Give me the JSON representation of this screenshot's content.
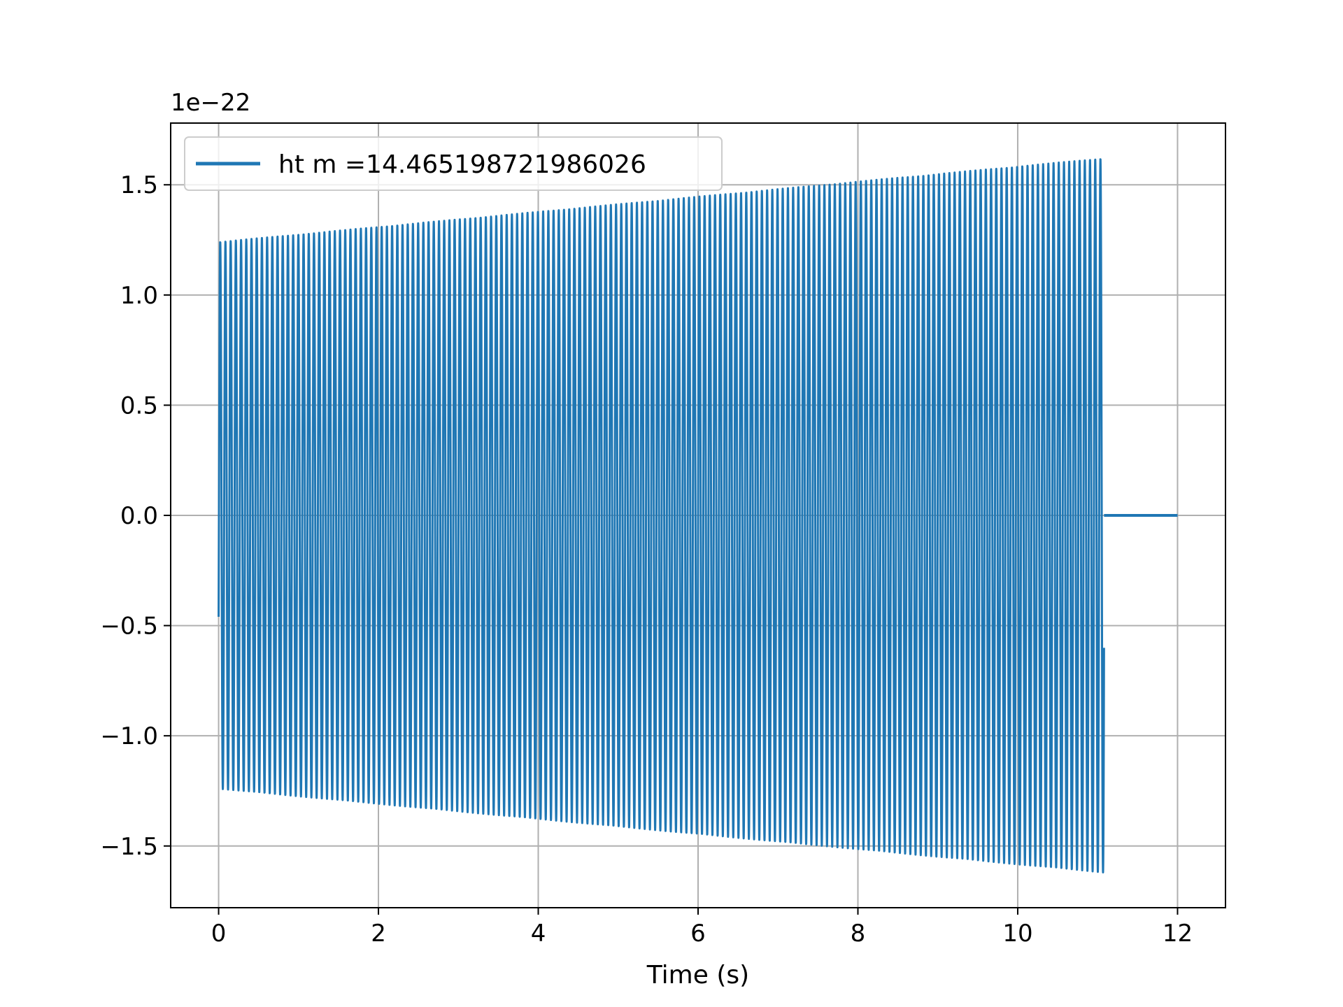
{
  "chart_data": {
    "type": "line",
    "title": "",
    "xlabel": "Time (s)",
    "ylabel": "",
    "y_offset_label": "1e−22",
    "xlim": [
      -0.6,
      12.6
    ],
    "ylim": [
      -1.78,
      1.78
    ],
    "x_ticks": [
      0,
      2,
      4,
      6,
      8,
      10,
      12
    ],
    "y_ticks": [
      -1.5,
      -1.0,
      -0.5,
      0.0,
      0.5,
      1.0,
      1.5
    ],
    "x_tick_labels": [
      "0",
      "2",
      "4",
      "6",
      "8",
      "10",
      "12"
    ],
    "y_tick_labels": [
      "−1.5",
      "−1.0",
      "−0.5",
      "0.0",
      "0.5",
      "1.0",
      "1.5"
    ],
    "grid": true,
    "legend_position": "upper-left",
    "series": [
      {
        "name": "ht m =14.465198721986026",
        "color": "#1f77b4",
        "signal": "oscillation",
        "t_start": 0.0,
        "t_end": 11.08,
        "cycles": 170,
        "amplitude_start": 1.24,
        "amplitude_end": 1.62,
        "initial_value": -0.46,
        "flat_from": 11.08,
        "flat_to": 12.0,
        "flat_value": 0.0
      }
    ]
  }
}
